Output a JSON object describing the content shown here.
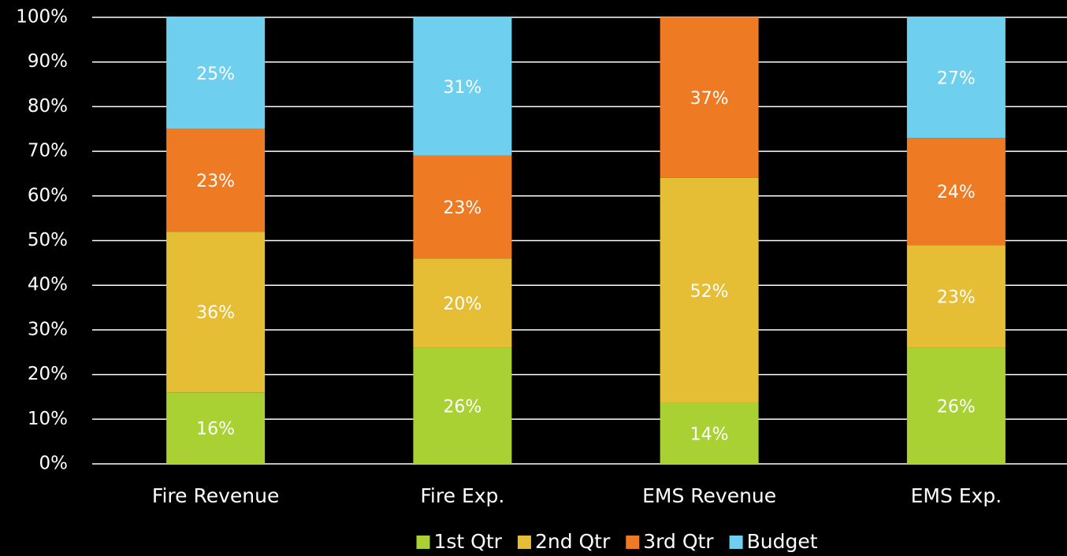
{
  "chart_data": {
    "type": "bar",
    "stacked": "percent",
    "categories": [
      "Fire Revenue",
      "Fire Exp.",
      "EMS Revenue",
      "EMS Exp."
    ],
    "series": [
      {
        "name": "1st Qtr",
        "color": "#a9d134",
        "values": [
          16,
          26,
          14,
          26
        ],
        "value_labels": [
          "16%",
          "26%",
          "14%",
          "26%"
        ]
      },
      {
        "name": "2nd Qtr",
        "color": "#e6be36",
        "values": [
          36,
          20,
          52,
          23
        ],
        "value_labels": [
          "36%",
          "20%",
          "52%",
          "23%"
        ]
      },
      {
        "name": "3rd Qtr",
        "color": "#ee7b24",
        "values": [
          23,
          23,
          37,
          24
        ],
        "value_labels": [
          "23%",
          "23%",
          "37%",
          "24%"
        ]
      },
      {
        "name": "Budget",
        "color": "#6ecfee",
        "values": [
          25,
          31,
          null,
          27
        ],
        "value_labels": [
          "25%",
          "31%",
          null,
          "27%"
        ]
      }
    ],
    "ylim": [
      0,
      100
    ],
    "yticks": [
      {
        "value": 0,
        "label": "0%"
      },
      {
        "value": 10,
        "label": "10%"
      },
      {
        "value": 20,
        "label": "20%"
      },
      {
        "value": 30,
        "label": "30%"
      },
      {
        "value": 40,
        "label": "40%"
      },
      {
        "value": 50,
        "label": "50%"
      },
      {
        "value": 60,
        "label": "60%"
      },
      {
        "value": 70,
        "label": "70%"
      },
      {
        "value": 80,
        "label": "80%"
      },
      {
        "value": 90,
        "label": "90%"
      },
      {
        "value": 100,
        "label": "100%"
      }
    ],
    "grid": true,
    "legend": "bottom"
  }
}
